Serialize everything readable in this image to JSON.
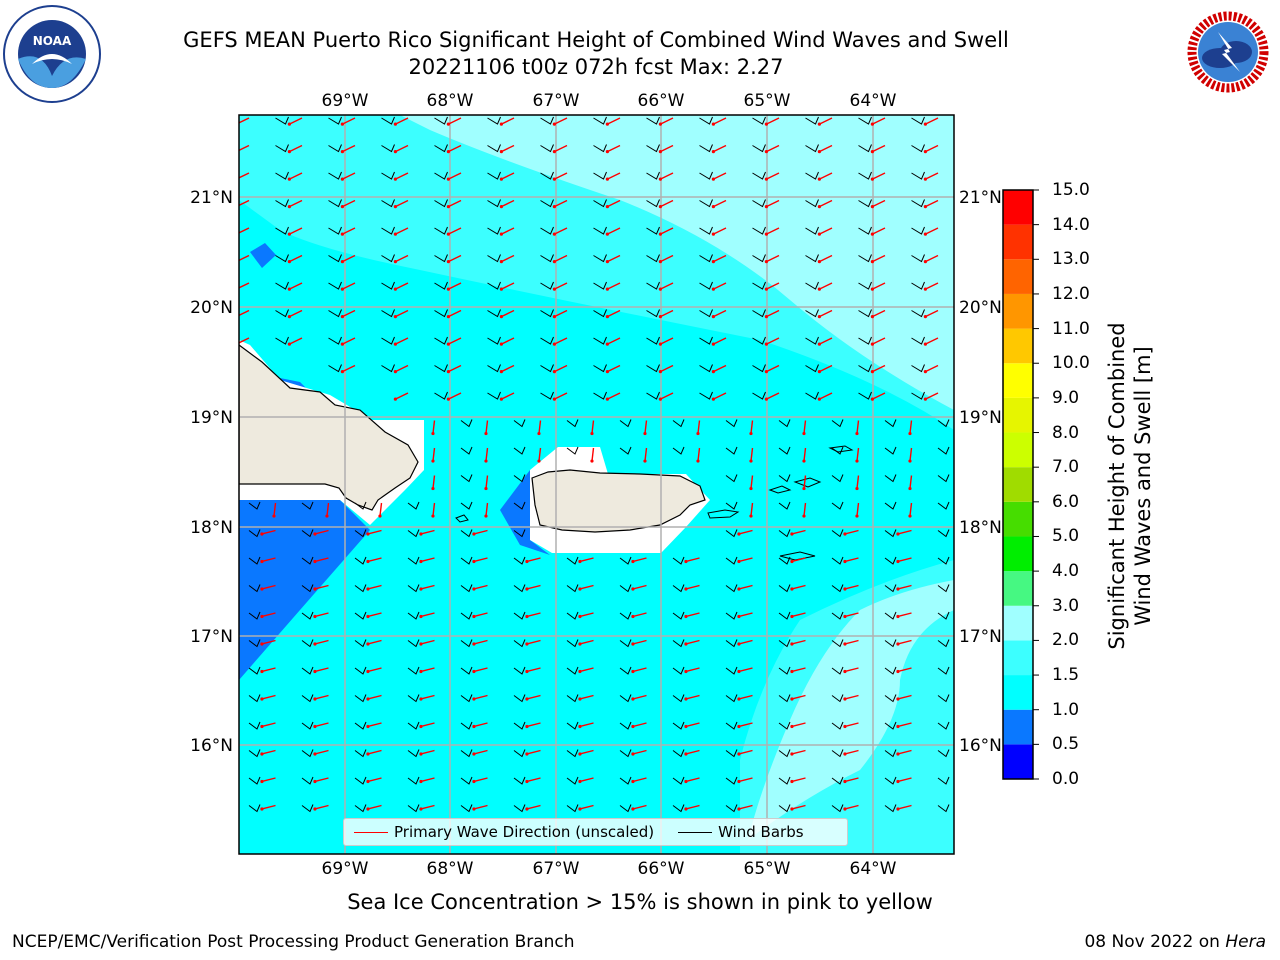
{
  "title": {
    "line1": "GEFS MEAN Puerto Rico Significant Height of Combined Wind Waves and Swell",
    "line2": "20221106 t00z 072h fcst   Max: 2.27"
  },
  "map": {
    "lon_labels": [
      "69°W",
      "68°W",
      "67°W",
      "66°W",
      "65°W",
      "64°W"
    ],
    "lat_labels": [
      "21°N",
      "20°N",
      "19°N",
      "18°N",
      "17°N",
      "16°N"
    ],
    "legend": {
      "primary": "Primary Wave Direction (unscaled)",
      "barbs": "Wind Barbs"
    }
  },
  "colorbar": {
    "label_line1": "Significant Height of Combined",
    "label_line2": "Wind Waves and Swell [m]",
    "ticks": [
      "0.0",
      "0.5",
      "1.0",
      "1.5",
      "2.0",
      "3.0",
      "4.0",
      "5.0",
      "6.0",
      "7.0",
      "8.0",
      "9.0",
      "10.0",
      "11.0",
      "12.0",
      "13.0",
      "14.0",
      "15.0"
    ],
    "colors": [
      "#0000ff",
      "#0a78ff",
      "#00ffff",
      "#3cffff",
      "#a0ffff",
      "#46f882",
      "#00ee00",
      "#46dd00",
      "#a0dc00",
      "#ccff00",
      "#e6f500",
      "#ffff00",
      "#ffc800",
      "#ff9600",
      "#ff6400",
      "#ff3200",
      "#ff0000"
    ]
  },
  "colors": {
    "land": "#eeeade",
    "sea_low": "#00ffff",
    "sea_mid": "#3cffff",
    "sea_high": "#a0ffff",
    "sea_calm": "#0a78ff",
    "arrow": "#ff0000",
    "barb": "#000000"
  },
  "footer": {
    "note": "Sea Ice Concentration > 15% is shown in pink to yellow",
    "left": "NCEP/EMC/Verification Post Processing Product Generation Branch",
    "right_date": "08 Nov 2022 on ",
    "right_host": "Hera"
  }
}
